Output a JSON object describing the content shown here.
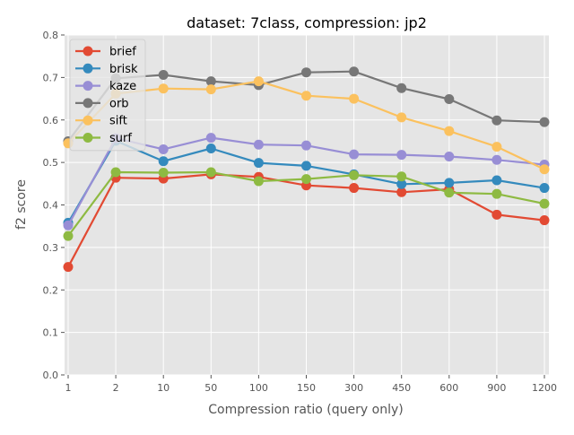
{
  "chart_data": {
    "type": "line",
    "title": "dataset: 7class, compression: jp2",
    "xlabel": "Compression ratio (query only)",
    "ylabel": "f2 score",
    "categories": [
      "1",
      "2",
      "10",
      "50",
      "100",
      "150",
      "300",
      "450",
      "600",
      "900",
      "1200"
    ],
    "ylim": [
      0.0,
      0.8
    ],
    "yticks": [
      "0.0",
      "0.1",
      "0.2",
      "0.3",
      "0.4",
      "0.5",
      "0.6",
      "0.7",
      "0.8"
    ],
    "grid": true,
    "legend_position": "top-left",
    "background": "#e5e5e5",
    "series": [
      {
        "name": "brief",
        "color": "#e24a33",
        "values": [
          0.254,
          0.464,
          0.462,
          0.472,
          0.466,
          0.446,
          0.44,
          0.43,
          0.437,
          0.377,
          0.364
        ]
      },
      {
        "name": "brisk",
        "color": "#348abd",
        "values": [
          0.358,
          0.551,
          0.503,
          0.533,
          0.499,
          0.492,
          0.472,
          0.449,
          0.452,
          0.458,
          0.44
        ]
      },
      {
        "name": "kaze",
        "color": "#988ed5",
        "values": [
          0.352,
          0.557,
          0.531,
          0.558,
          0.542,
          0.54,
          0.519,
          0.518,
          0.514,
          0.506,
          0.495
        ]
      },
      {
        "name": "orb",
        "color": "#777777",
        "values": [
          0.55,
          0.698,
          0.706,
          0.691,
          0.682,
          0.712,
          0.714,
          0.675,
          0.649,
          0.599,
          0.595
        ]
      },
      {
        "name": "sift",
        "color": "#fbc15e",
        "values": [
          0.545,
          0.662,
          0.674,
          0.672,
          0.691,
          0.657,
          0.65,
          0.606,
          0.574,
          0.537,
          0.484
        ]
      },
      {
        "name": "surf",
        "color": "#8eba42",
        "values": [
          0.327,
          0.477,
          0.476,
          0.477,
          0.456,
          0.461,
          0.47,
          0.467,
          0.429,
          0.426,
          0.403
        ]
      }
    ]
  }
}
